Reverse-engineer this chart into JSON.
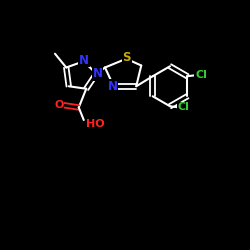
{
  "background": "#000000",
  "bond_color": "#ffffff",
  "atom_colors": {
    "N": "#3333ff",
    "S": "#ccaa00",
    "O": "#ff2222",
    "Cl": "#33cc33",
    "C": "#ffffff"
  }
}
